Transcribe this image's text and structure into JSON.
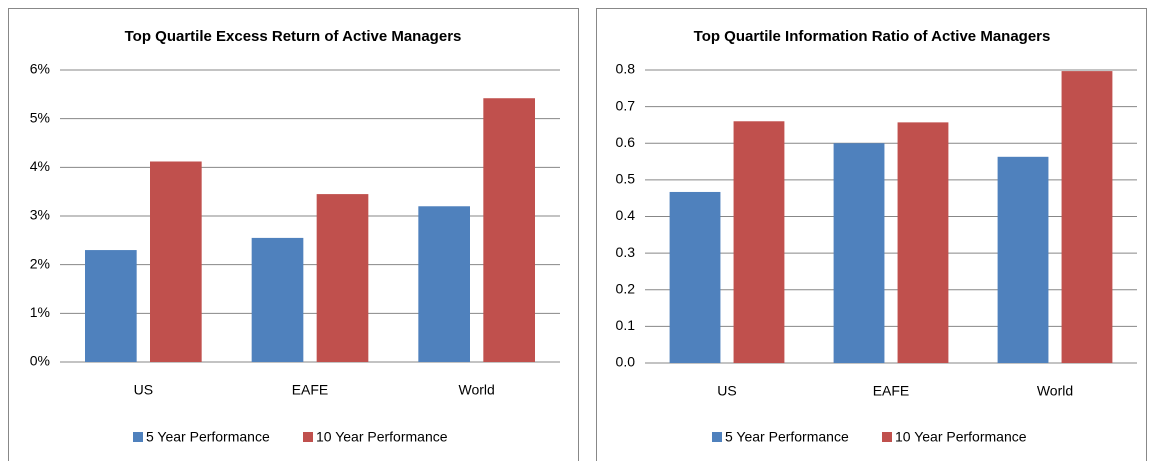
{
  "chart_data": [
    {
      "type": "bar",
      "title": "Top Quartile Excess Return of Active Managers",
      "categories": [
        "US",
        "EAFE",
        "World"
      ],
      "series": [
        {
          "name": "5 Year Performance",
          "color": "#4f81bd",
          "values": [
            2.3,
            2.55,
            3.2
          ]
        },
        {
          "name": "10 Year Performance",
          "color": "#c0504d",
          "values": [
            4.12,
            3.45,
            5.42
          ]
        }
      ],
      "ylim": [
        0,
        6
      ],
      "yticks": [
        {
          "value": 0,
          "label": "0%"
        },
        {
          "value": 1,
          "label": "1%"
        },
        {
          "value": 2,
          "label": "2%"
        },
        {
          "value": 3,
          "label": "3%"
        },
        {
          "value": 4,
          "label": "4%"
        },
        {
          "value": 5,
          "label": "5%"
        },
        {
          "value": 6,
          "label": "6%"
        }
      ],
      "grid": true,
      "legend": "bottom"
    },
    {
      "type": "bar",
      "title": "Top Quartile Information Ratio of Active Managers",
      "categories": [
        "US",
        "EAFE",
        "World"
      ],
      "series": [
        {
          "name": "5 Year Performance",
          "color": "#4f81bd",
          "values": [
            0.467,
            0.6,
            0.563
          ]
        },
        {
          "name": "10 Year Performance",
          "color": "#c0504d",
          "values": [
            0.66,
            0.657,
            0.797
          ]
        }
      ],
      "ylim": [
        0,
        0.8
      ],
      "yticks": [
        {
          "value": 0,
          "label": "0.0"
        },
        0.1,
        0.2,
        0.3,
        0.4,
        0.5,
        0.6,
        0.7,
        0.8
      ],
      "grid": true,
      "legend": "bottom"
    }
  ]
}
